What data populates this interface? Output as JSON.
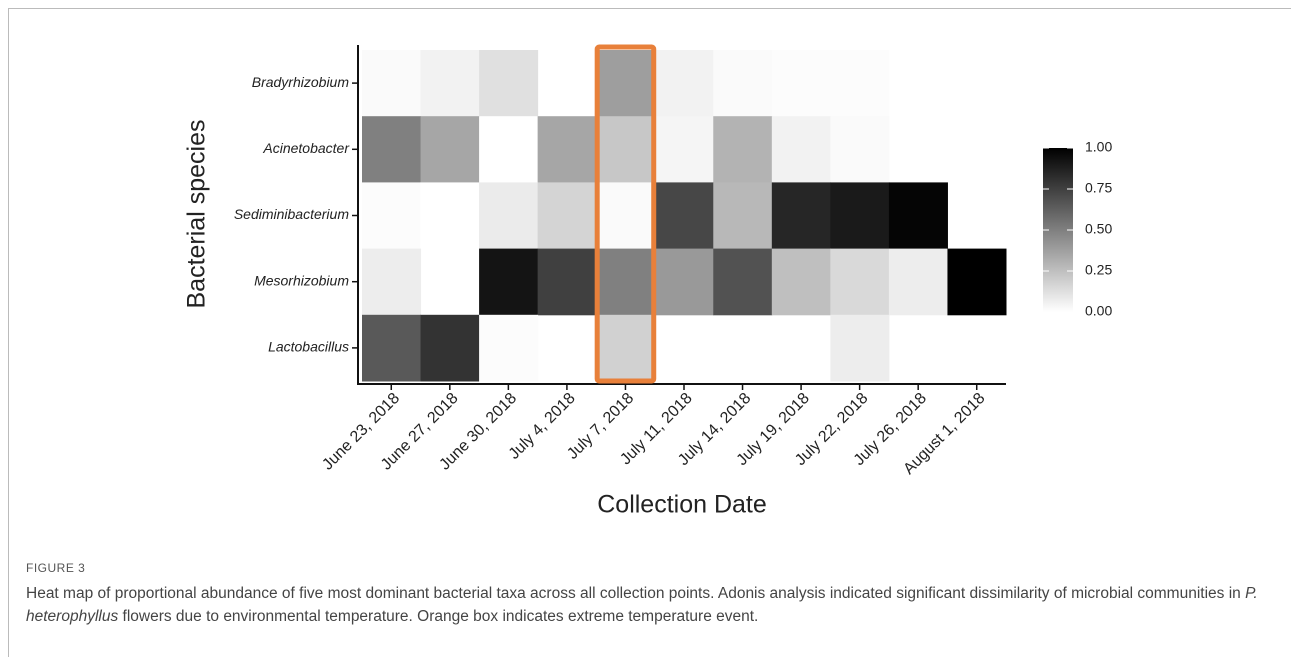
{
  "chart_data": {
    "type": "heatmap",
    "x_label": "Collection Date",
    "y_label": "Bacterial species",
    "categories": [
      "June 23, 2018",
      "June 27, 2018",
      "June 30, 2018",
      "July 4, 2018",
      "July 7, 2018",
      "July 11, 2018",
      "July 14, 2018",
      "July 19, 2018",
      "July 22, 2018",
      "July 26, 2018",
      "August 1, 2018"
    ],
    "rows": [
      "Bradyrhizobium",
      "Acinetobacter",
      "Sediminibacterium",
      "Mesorhizobium",
      "Lactobacillus"
    ],
    "values": [
      [
        0.02,
        0.05,
        0.12,
        null,
        0.38,
        0.05,
        0.02,
        0.01,
        0.01,
        null,
        null
      ],
      [
        0.5,
        0.35,
        0.0,
        0.35,
        0.22,
        0.04,
        0.3,
        0.05,
        0.02,
        null,
        null
      ],
      [
        0.01,
        0.0,
        0.08,
        0.17,
        0.02,
        0.72,
        0.28,
        0.85,
        0.9,
        0.98,
        null
      ],
      [
        0.07,
        null,
        0.92,
        0.75,
        0.5,
        0.4,
        0.68,
        0.25,
        0.15,
        0.07,
        1.0
      ],
      [
        0.65,
        0.8,
        0.01,
        null,
        0.18,
        null,
        null,
        null,
        0.07,
        null,
        null
      ]
    ],
    "colorscale": [
      "#ffffff",
      "#000000"
    ],
    "clim": [
      0,
      1
    ],
    "cticks": [
      {
        "value": 0,
        "label": "0.00"
      },
      {
        "value": 0.25,
        "label": "0.25"
      },
      {
        "value": 0.5,
        "label": "0.50"
      },
      {
        "value": 0.75,
        "label": "0.75"
      },
      {
        "value": 1,
        "label": "1.00"
      }
    ],
    "highlight": "July 7, 2018",
    "highlight_color": "#e8803a"
  },
  "caption": {
    "label": "FIGURE 3",
    "text_before": "Heat map of proportional abundance of five most dominant bacterial taxa across all collection points. Adonis analysis indicated significant dissimilarity of microbial communities in ",
    "text_italic": "P. heterophyllus",
    "text_after": " flowers due to environmental temperature. Orange box indicates extreme temperature event."
  }
}
